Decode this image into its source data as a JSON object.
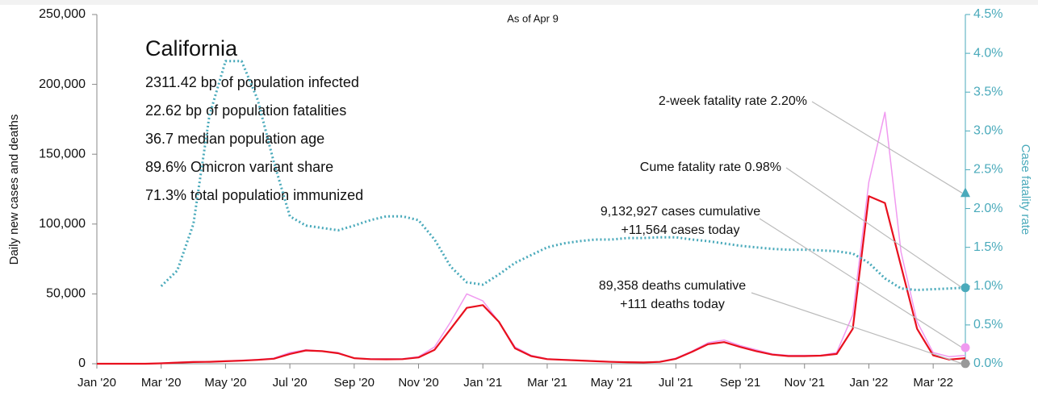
{
  "chart_data": {
    "type": "line",
    "title": "California",
    "subtitle": "As of Apr 9",
    "stats": [
      "2311.42 bp of population infected",
      "22.62 bp of population fatalities",
      "36.7 median population age",
      "89.6% Omicron variant share",
      "71.3% total population immunized"
    ],
    "ylabel": "Daily new cases and deaths",
    "y2label": "Case fatality rate",
    "categories": [
      "Jan '20",
      null,
      null,
      null,
      "Mar '20",
      null,
      null,
      null,
      "May '20",
      null,
      null,
      null,
      "Jul '20",
      null,
      null,
      null,
      "Sep '20",
      null,
      null,
      null,
      "Nov '20",
      null,
      null,
      null,
      "Jan '21",
      null,
      null,
      null,
      "Mar '21",
      null,
      null,
      null,
      "May '21",
      null,
      null,
      null,
      "Jul '21",
      null,
      null,
      null,
      "Sep '21",
      null,
      null,
      null,
      "Nov '21",
      null,
      null,
      null,
      "Jan '22",
      null,
      null,
      null,
      "Mar '22",
      null,
      null
    ],
    "ylim": [
      0,
      250000
    ],
    "yticks": [
      0,
      {
        "value": 50000,
        "label": "50,000"
      },
      {
        "value": 100000,
        "label": "100,000"
      },
      {
        "value": 150000,
        "label": "150,000"
      },
      {
        "value": 200000,
        "label": "200,000"
      },
      {
        "value": 250000,
        "label": "250,000"
      }
    ],
    "y2lim": [
      0,
      4.5
    ],
    "y2ticks": [
      {
        "value": 0,
        "label": "0.0%"
      },
      {
        "value": 0.5,
        "label": "0.5%"
      },
      {
        "value": 1,
        "label": "1.0%"
      },
      {
        "value": 1.5,
        "label": "1.5%"
      },
      {
        "value": 2,
        "label": "2.0%"
      },
      {
        "value": 2.5,
        "label": "2.5%"
      },
      {
        "value": 3,
        "label": "3.0%"
      },
      {
        "value": 3.5,
        "label": "3.5%"
      },
      {
        "value": 4,
        "label": "4.0%"
      },
      {
        "value": 4.5,
        "label": "4.5%"
      }
    ],
    "series": [
      {
        "color": "#f09af0",
        "style": "solid",
        "width": 1.5,
        "values": [
          0,
          0,
          0,
          0,
          500,
          1000,
          1500,
          1500,
          2000,
          2500,
          3000,
          4000,
          8000,
          10000,
          9000,
          8000,
          4000,
          3500,
          3500,
          3500,
          5000,
          12000,
          30000,
          50000,
          45000,
          30000,
          12000,
          6000,
          3500,
          3000,
          2500,
          2000,
          1500,
          1200,
          1000,
          1500,
          4000,
          9000,
          15000,
          17000,
          13000,
          10000,
          7000,
          6000,
          6000,
          6000,
          8000,
          35000,
          130000,
          180000,
          80000,
          30000,
          8000,
          5000,
          6000
        ]
      },
      {
        "color": "#e8101e",
        "style": "solid",
        "width": 2.2,
        "values": [
          0,
          0,
          0,
          0,
          300,
          800,
          1200,
          1400,
          1800,
          2200,
          2800,
          3600,
          7000,
          9500,
          9000,
          7500,
          4000,
          3300,
          3200,
          3300,
          4500,
          10000,
          25000,
          40000,
          42000,
          30000,
          11000,
          5500,
          3300,
          2800,
          2300,
          1800,
          1300,
          1100,
          900,
          1300,
          3500,
          8500,
          14000,
          15500,
          12000,
          9000,
          6500,
          5500,
          5500,
          5800,
          7000,
          25000,
          120000,
          115000,
          70000,
          25000,
          6000,
          3000,
          4000
        ]
      },
      {
        "color": "#4aaabb",
        "style": "dotted",
        "width": 3,
        "axis": "y2",
        "values": [
          null,
          null,
          null,
          null,
          1.0,
          1.2,
          1.8,
          3.2,
          3.9,
          3.9,
          3.4,
          2.6,
          1.9,
          1.78,
          1.75,
          1.72,
          1.78,
          1.85,
          1.9,
          1.9,
          1.85,
          1.6,
          1.25,
          1.05,
          1.02,
          1.15,
          1.3,
          1.4,
          1.5,
          1.55,
          1.58,
          1.6,
          1.6,
          1.62,
          1.62,
          1.63,
          1.63,
          1.6,
          1.58,
          1.55,
          1.52,
          1.5,
          1.48,
          1.47,
          1.47,
          1.46,
          1.45,
          1.42,
          1.3,
          1.1,
          0.97,
          0.95,
          0.96,
          0.97,
          0.98
        ]
      }
    ],
    "end_markers": [
      {
        "lines": [
          "2-week fatality rate 2.20%"
        ],
        "value": 2.2,
        "axis": "y2",
        "shape": "triangle",
        "color": "#4aaabb"
      },
      {
        "lines": [
          "Cume fatality rate 0.98%"
        ],
        "value": 0.98,
        "axis": "y2",
        "shape": "circle",
        "color": "#4aaabb"
      },
      {
        "lines": [
          "9,132,927 cases cumulative",
          "+11,564 cases today"
        ],
        "value": 11564,
        "axis": "y",
        "shape": "circle",
        "color": "#f09af0"
      },
      {
        "lines": [
          "89,358 deaths cumulative",
          "+111 deaths today"
        ],
        "value": 111,
        "axis": "y",
        "shape": "circle",
        "color": "#999999"
      }
    ]
  }
}
